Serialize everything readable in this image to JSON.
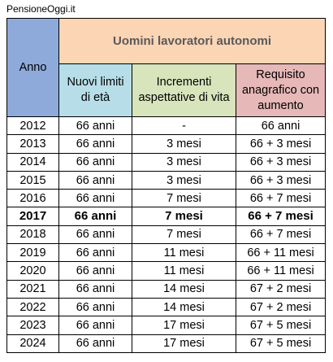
{
  "source": "PensioneOggi.it",
  "table": {
    "header": {
      "year": "Anno",
      "group": "Uomini lavoratori autonomi",
      "columns": [
        "Nuovi limiti di età",
        "Incrementi aspettative di vita",
        "Requisito anagrafico con aumento"
      ]
    },
    "rows": [
      [
        "2012",
        "66 anni",
        "-",
        "66 anni"
      ],
      [
        "2013",
        "66 anni",
        "3 mesi",
        "66 + 3 mesi"
      ],
      [
        "2014",
        "66 anni",
        "3 mesi",
        "66 + 3 mesi"
      ],
      [
        "2015",
        "66 anni",
        "3 mesi",
        "66 + 3 mesi"
      ],
      [
        "2016",
        "66 anni",
        "7 mesi",
        "66 + 7 mesi"
      ],
      [
        "2017",
        "66 anni",
        "7 mesi",
        "66 + 7 mesi"
      ],
      [
        "2018",
        "66 anni",
        "7 mesi",
        "66 + 7 mesi"
      ],
      [
        "2019",
        "66 anni",
        "11 mesi",
        "66 + 11 mesi"
      ],
      [
        "2020",
        "66 anni",
        "11 mesi",
        "66 + 11 mesi"
      ],
      [
        "2021",
        "66 anni",
        "14 mesi",
        "67 + 2 mesi"
      ],
      [
        "2022",
        "66 anni",
        "14 mesi",
        "67 + 2 mesi"
      ],
      [
        "2023",
        "66 anni",
        "17 mesi",
        "67 + 5 mesi"
      ],
      [
        "2024",
        "66 anni",
        "17 mesi",
        "67 + 5 mesi"
      ]
    ],
    "bold_rows": [
      5
    ]
  }
}
